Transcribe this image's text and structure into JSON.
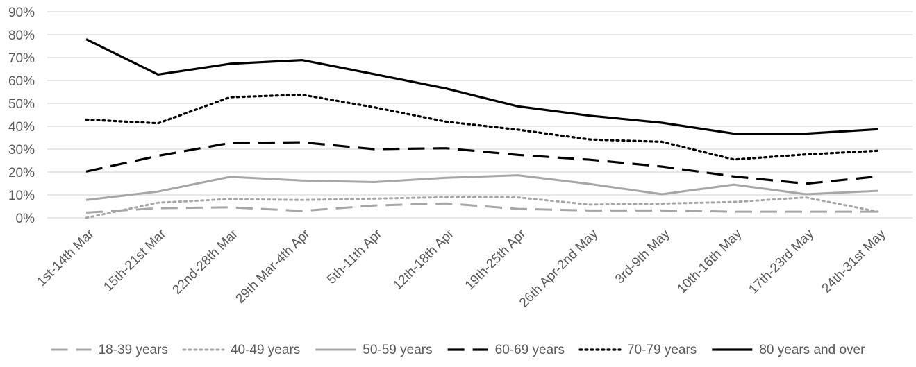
{
  "chart_data": {
    "type": "line",
    "title": "",
    "xlabel": "",
    "ylabel": "",
    "ylim": [
      0,
      90
    ],
    "y_ticks": [
      0,
      10,
      20,
      30,
      40,
      50,
      60,
      70,
      80,
      90
    ],
    "y_tick_labels": [
      "0%",
      "10%",
      "20%",
      "30%",
      "40%",
      "50%",
      "60%",
      "70%",
      "80%",
      "90%"
    ],
    "grid": true,
    "legend_position": "bottom",
    "categories": [
      "1st-14th Mar",
      "15th-21st Mar",
      "22nd-28th Mar",
      "29th Mar-4th Apr",
      "5th-11th Apr",
      "12th-18th Apr",
      "19th-25th Apr",
      "26th Apr-2nd May",
      "3rd-9th May",
      "10th-16th May",
      "17th-23rd May",
      "24th-31st May"
    ],
    "series": [
      {
        "name": "18-39 years",
        "color": "#a6a6a6",
        "style": "dashed",
        "values": [
          2.3,
          4.2,
          4.6,
          3.0,
          5.4,
          6.3,
          3.9,
          3.2,
          3.2,
          2.7,
          2.7,
          2.7
        ]
      },
      {
        "name": "40-49 years",
        "color": "#a6a6a6",
        "style": "dotted",
        "values": [
          0.0,
          6.6,
          8.2,
          7.8,
          8.4,
          9.0,
          8.9,
          5.8,
          6.2,
          6.9,
          8.9,
          2.7
        ]
      },
      {
        "name": "50-59 years",
        "color": "#a6a6a6",
        "style": "solid",
        "values": [
          7.8,
          11.5,
          17.9,
          16.3,
          15.6,
          17.5,
          18.6,
          14.8,
          10.3,
          14.5,
          10.3,
          11.8
        ]
      },
      {
        "name": "60-69 years",
        "color": "#000000",
        "style": "dashed",
        "values": [
          20.2,
          27.1,
          32.7,
          33.0,
          30.0,
          30.4,
          27.5,
          25.4,
          22.4,
          18.1,
          14.9,
          18.1
        ]
      },
      {
        "name": "70-79 years",
        "color": "#000000",
        "style": "dotted",
        "values": [
          42.9,
          41.3,
          52.7,
          53.8,
          48.3,
          42.0,
          38.5,
          34.2,
          33.2,
          25.5,
          27.7,
          29.3
        ]
      },
      {
        "name": "80 years and over",
        "color": "#000000",
        "style": "solid",
        "values": [
          78.0,
          62.6,
          67.3,
          68.9,
          62.8,
          56.5,
          48.7,
          44.6,
          41.5,
          36.8,
          36.8,
          38.7
        ]
      }
    ]
  }
}
